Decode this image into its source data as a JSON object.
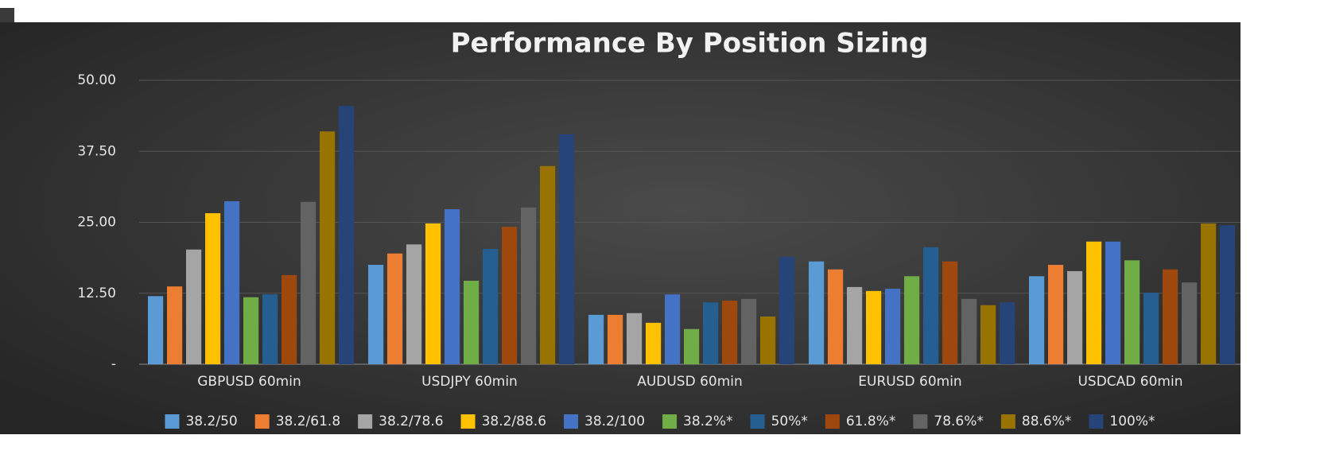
{
  "chart_data": {
    "type": "bar",
    "title": "Performance By Position Sizing",
    "categories": [
      "GBPUSD 60min",
      "USDJPY 60min",
      "AUDUSD 60min",
      "EURUSD 60min",
      "USDCAD 60min"
    ],
    "series": [
      {
        "name": "38.2/50",
        "color": "#5b9bd5",
        "values": [
          12.0,
          17.5,
          8.7,
          18.1,
          15.5
        ]
      },
      {
        "name": "38.2/61.8",
        "color": "#ed7d31",
        "values": [
          13.7,
          19.5,
          8.7,
          16.7,
          17.5
        ]
      },
      {
        "name": "38.2/78.6",
        "color": "#a5a5a5",
        "values": [
          20.2,
          21.1,
          9.0,
          13.6,
          16.4
        ]
      },
      {
        "name": "38.2/88.6",
        "color": "#ffc000",
        "values": [
          26.6,
          24.8,
          7.3,
          12.9,
          21.6
        ]
      },
      {
        "name": "38.2/100",
        "color": "#4472c4",
        "values": [
          28.7,
          27.3,
          12.3,
          13.3,
          21.6
        ]
      },
      {
        "name": "38.2%*",
        "color": "#70ad47",
        "values": [
          11.8,
          14.7,
          6.2,
          15.5,
          18.3
        ]
      },
      {
        "name": "50%*",
        "color": "#255e91",
        "values": [
          12.3,
          20.3,
          10.9,
          20.6,
          12.6
        ]
      },
      {
        "name": "61.8%*",
        "color": "#9e480e",
        "values": [
          15.7,
          24.2,
          11.2,
          18.1,
          16.7
        ]
      },
      {
        "name": "78.6%*",
        "color": "#636363",
        "values": [
          28.6,
          27.6,
          11.5,
          11.5,
          14.4
        ]
      },
      {
        "name": "88.6%*",
        "color": "#997300",
        "values": [
          41.0,
          34.9,
          8.4,
          10.4,
          24.8
        ]
      },
      {
        "name": "100%*",
        "color": "#264478",
        "values": [
          45.5,
          40.5,
          18.9,
          10.9,
          24.5
        ]
      }
    ],
    "ylim": [
      0,
      50
    ],
    "yticks": [
      {
        "value": 0,
        "label": "-"
      },
      {
        "value": 12.5,
        "label": "12.50"
      },
      {
        "value": 25,
        "label": "25.00"
      },
      {
        "value": 37.5,
        "label": "37.50"
      },
      {
        "value": 50,
        "label": "50.00"
      }
    ],
    "grid": true
  }
}
